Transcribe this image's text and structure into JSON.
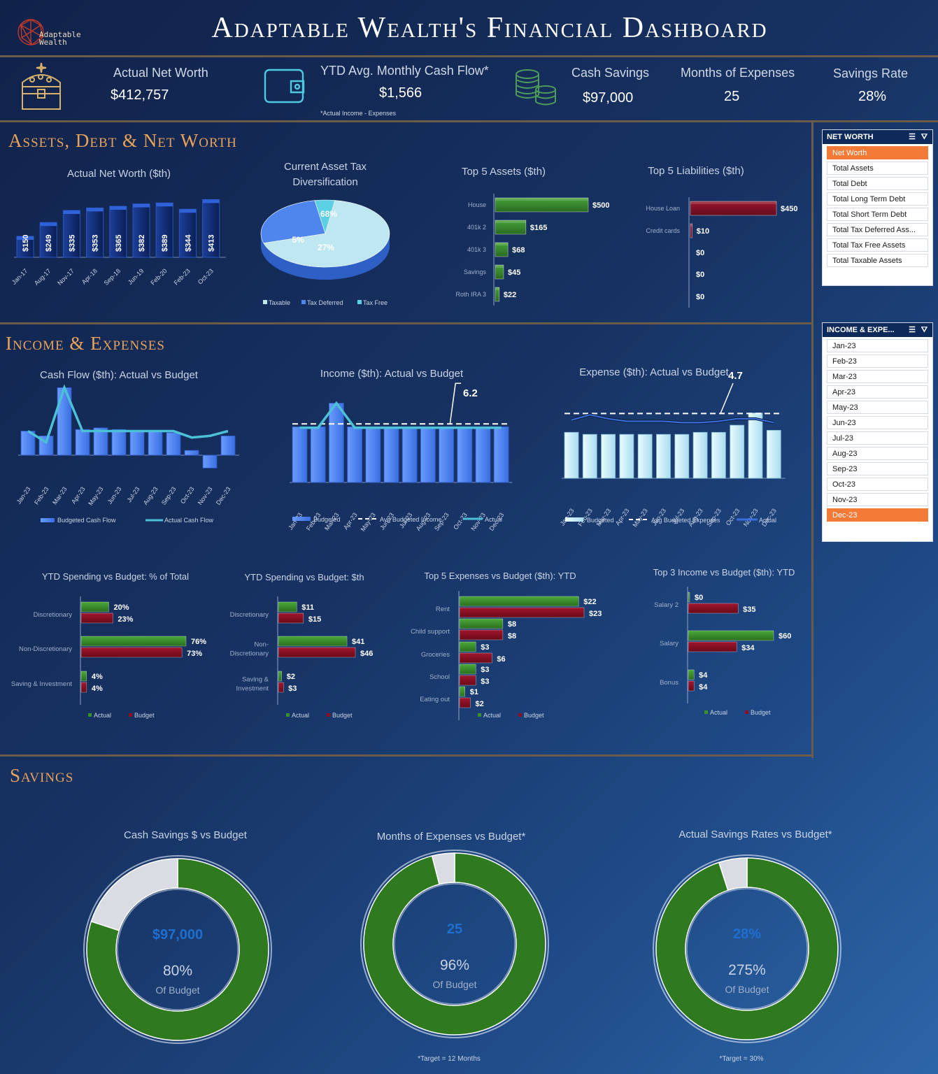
{
  "header": {
    "title": "Adaptable Wealth's Financial Dashboard",
    "logo_line1": "Adaptable",
    "logo_line2": "Wealth"
  },
  "kpis": {
    "net_worth_label": "Actual Net Worth",
    "net_worth_value": "$412,757",
    "cash_flow_label": "YTD Avg. Monthly Cash Flow*",
    "cash_flow_value": "$1,566",
    "cash_flow_note": "*Actual Income - Expenses",
    "cash_savings_label": "Cash Savings",
    "cash_savings_value": "$97,000",
    "months_label": "Months of Expenses",
    "months_value": "25",
    "savings_rate_label": "Savings Rate",
    "savings_rate_value": "28%"
  },
  "sections": {
    "assets": "Assets, Debt & Net Worth",
    "income": "Income & Expenses",
    "savings": "Savings"
  },
  "colors": {
    "accent_orange": "#f47a38",
    "section_title": "#e8a25a",
    "actual_green": "#3a8f2a",
    "budget_red": "#8a1024",
    "bar_blue": "#4f86ee",
    "bar_navy": "#12307a",
    "light_blue": "#cdeffa"
  },
  "slicers": {
    "net_worth": {
      "header": "NET WORTH",
      "items": [
        "Net Worth",
        "Total Assets",
        "Total Debt",
        "Total Long Term Debt",
        "Total Short Term Debt",
        "Total Tax Deferred Ass...",
        "Total Tax Free Assets",
        "Total Taxable Assets"
      ],
      "selected": "Net Worth"
    },
    "income_expenses": {
      "header": "INCOME & EXPE...",
      "items": [
        "Jan-23",
        "Feb-23",
        "Mar-23",
        "Apr-23",
        "May-23",
        "Jun-23",
        "Jul-23",
        "Aug-23",
        "Sep-23",
        "Oct-23",
        "Nov-23",
        "Dec-23"
      ],
      "selected": "Dec-23"
    }
  },
  "chart_data": [
    {
      "id": "net_worth",
      "type": "bar",
      "title": "Actual Net Worth ($th)",
      "categories": [
        "Jan-17",
        "Aug-17",
        "Nov-17",
        "Apr-18",
        "Sep-18",
        "Jun-19",
        "Feb-20",
        "Feb-23",
        "Oct-23"
      ],
      "values": [
        150,
        249,
        335,
        353,
        365,
        382,
        389,
        344,
        413
      ],
      "labels": [
        "$150",
        "$249",
        "$335",
        "$353",
        "$365",
        "$382",
        "$389",
        "$344",
        "$413"
      ],
      "ylim": [
        0,
        450
      ]
    },
    {
      "id": "asset_tax",
      "type": "pie",
      "title": "Current Asset Tax Diversification",
      "categories": [
        "Taxable",
        "Tax Deferred",
        "Tax Free"
      ],
      "values": [
        5,
        27,
        68
      ],
      "labels": [
        "5%",
        "27%",
        "68%"
      ]
    },
    {
      "id": "top_assets",
      "type": "bar",
      "title": "Top 5 Assets ($th)",
      "categories": [
        "House",
        "401k 2",
        "401k 3",
        "Savings",
        "Roth IRA 3"
      ],
      "values": [
        500,
        165,
        68,
        45,
        22
      ],
      "labels": [
        "$500",
        "$165",
        "$68",
        "$45",
        "$22"
      ]
    },
    {
      "id": "top_liabilities",
      "type": "bar",
      "title": "Top 5 Liabilities ($th)",
      "categories": [
        "House Loan",
        "Credit cards",
        "",
        "",
        ""
      ],
      "values": [
        450,
        10,
        0,
        0,
        0
      ],
      "labels": [
        "$450",
        "$10",
        "$0",
        "$0",
        "$0"
      ]
    },
    {
      "id": "cash_flow",
      "type": "bar",
      "title": "Cash Flow ($th): Actual vs Budget",
      "categories": [
        "Jan-23",
        "Feb-23",
        "Mar-23",
        "Apr-23",
        "May-23",
        "Jun-23",
        "Jul-23",
        "Aug-23",
        "Sep-23",
        "Oct-23",
        "Nov-23",
        "Dec-23"
      ],
      "series": [
        {
          "name": "Budgeted Cash Flow",
          "values": [
            1.5,
            1.2,
            4.2,
            1.6,
            1.7,
            1.6,
            1.5,
            1.5,
            1.4,
            0.3,
            -0.8,
            1.2
          ]
        },
        {
          "name": "Actual Cash Flow",
          "values": [
            1.5,
            0.8,
            4.2,
            1.5,
            1.5,
            1.5,
            1.5,
            1.5,
            1.5,
            1.1,
            1.2,
            1.5
          ]
        }
      ]
    },
    {
      "id": "income",
      "type": "bar",
      "title": "Income ($th): Actual vs Budget",
      "categories": [
        "Jan-23",
        "Feb-23",
        "Mar-23",
        "Apr-23",
        "May-23",
        "Jun-23",
        "Jul-23",
        "Aug-23",
        "Sep-23",
        "Oct-23",
        "Nov-23",
        "Dec-23"
      ],
      "series": [
        {
          "name": "Budgeted",
          "values": [
            5.9,
            5.9,
            8.4,
            5.9,
            5.9,
            5.9,
            5.9,
            5.9,
            5.9,
            5.9,
            5.9,
            5.9
          ]
        },
        {
          "name": "Avg Budgeted Income",
          "values": [
            6.2,
            6.2,
            6.2,
            6.2,
            6.2,
            6.2,
            6.2,
            6.2,
            6.2,
            6.2,
            6.2,
            6.2
          ]
        },
        {
          "name": "Actual",
          "values": [
            5.8,
            5.8,
            8.4,
            5.8,
            5.8,
            5.8,
            5.8,
            5.8,
            5.8,
            5.8,
            5.8,
            5.8
          ]
        }
      ],
      "callout": "6.2"
    },
    {
      "id": "expense",
      "type": "bar",
      "title": "Expense ($th): Actual vs Budget",
      "categories": [
        "Jan-23",
        "Feb-23",
        "Mar-23",
        "Apr-23",
        "May-23",
        "Jun-23",
        "Jul-23",
        "Aug-23",
        "Sep-23",
        "Oct-23",
        "Nov-23",
        "Dec-23"
      ],
      "series": [
        {
          "name": "Budgeted",
          "values": [
            4.5,
            4.3,
            4.3,
            4.3,
            4.3,
            4.3,
            4.3,
            4.5,
            4.5,
            5.2,
            6.4,
            4.7
          ]
        },
        {
          "name": "Avg Budgeted Expenses",
          "values": [
            4.7,
            4.7,
            4.7,
            4.7,
            4.7,
            4.7,
            4.7,
            4.7,
            4.7,
            4.7,
            4.7,
            4.7
          ]
        },
        {
          "name": "Actual",
          "values": [
            4.2,
            4.6,
            4.3,
            4.1,
            4.1,
            4.1,
            4.0,
            4.0,
            4.1,
            4.3,
            4.3,
            4.0
          ]
        }
      ],
      "callout": "4.7"
    },
    {
      "id": "ytd_pct",
      "type": "bar",
      "title": "YTD Spending vs Budget: % of Total",
      "categories": [
        "Discretionary",
        "Non-Discretionary",
        "Saving & Investment"
      ],
      "series": [
        {
          "name": "Actual",
          "values": [
            20,
            76,
            4
          ],
          "labels": [
            "20%",
            "76%",
            "4%"
          ]
        },
        {
          "name": "Budget",
          "values": [
            23,
            73,
            4
          ],
          "labels": [
            "23%",
            "73%",
            "4%"
          ]
        }
      ]
    },
    {
      "id": "ytd_usd",
      "type": "bar",
      "title": "YTD Spending vs Budget: $th",
      "categories": [
        "Discretionary",
        "Non-Discretionary",
        "Saving & Investment"
      ],
      "series": [
        {
          "name": "Actual",
          "values": [
            11,
            41,
            2
          ],
          "labels": [
            "$11",
            "$41",
            "$2"
          ]
        },
        {
          "name": "Budget",
          "values": [
            15,
            46,
            3
          ],
          "labels": [
            "$15",
            "$46",
            "$3"
          ]
        }
      ]
    },
    {
      "id": "top_expenses",
      "type": "bar",
      "title": "Top 5 Expenses vs Budget ($th): YTD",
      "categories": [
        "Rent",
        "Child support",
        "Groceries",
        "School",
        "Eating out"
      ],
      "series": [
        {
          "name": "Actual",
          "values": [
            22,
            8,
            3,
            3,
            1
          ],
          "labels": [
            "$22",
            "$8",
            "$3",
            "$3",
            "$1"
          ]
        },
        {
          "name": "Budget",
          "values": [
            23,
            8,
            6,
            3,
            2
          ],
          "labels": [
            "$23",
            "$8",
            "$6",
            "$3",
            "$2"
          ]
        }
      ]
    },
    {
      "id": "top_income",
      "type": "bar",
      "title": "Top 3 Income vs Budget ($th): YTD",
      "categories": [
        "Salary 2",
        "Salary",
        "Bonus"
      ],
      "series": [
        {
          "name": "Actual",
          "values": [
            0,
            60,
            4
          ],
          "labels": [
            "$0",
            "$60",
            "$4"
          ]
        },
        {
          "name": "Budget",
          "values": [
            35,
            34,
            4
          ],
          "labels": [
            "$35",
            "$34",
            "$4"
          ]
        }
      ]
    },
    {
      "id": "donut_cash",
      "type": "pie",
      "title": "Cash Savings $ vs Budget",
      "values": [
        80,
        20
      ],
      "center_value": "$97,000",
      "center_pct": "80%",
      "center_sub": "Of Budget"
    },
    {
      "id": "donut_months",
      "type": "pie",
      "title": "Months of Expenses vs Budget*",
      "values": [
        96,
        4
      ],
      "center_value": "25",
      "center_pct": "96%",
      "center_sub": "Of Budget",
      "footnote": "*Target = 12 Months"
    },
    {
      "id": "donut_rate",
      "type": "pie",
      "title": "Actual Savings Rates vs Budget*",
      "values": [
        95,
        5
      ],
      "center_value": "28%",
      "center_pct": "275%",
      "center_sub": "Of Budget",
      "footnote": "*Target = 30%"
    }
  ]
}
